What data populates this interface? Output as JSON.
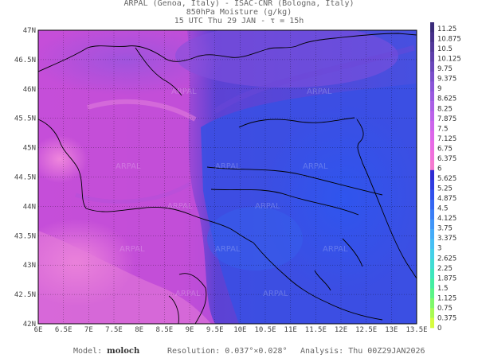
{
  "header": {
    "line1": "ARPAL (Genoa, Italy)  -  ISAC-CNR (Bologna, Italy)",
    "line2": "850hPa Moisture (g/kg)",
    "line3": "15 UTC Thu 29 JAN  -  τ = 15h"
  },
  "map": {
    "lat_ticks": [
      "47N",
      "46.5N",
      "46N",
      "45.5N",
      "45N",
      "44.5N",
      "44N",
      "43.5N",
      "43N",
      "42.5N",
      "42N"
    ],
    "lon_ticks": [
      "6E",
      "6.5E",
      "7E",
      "7.5E",
      "8E",
      "8.5E",
      "9E",
      "9.5E",
      "10E",
      "10.5E",
      "11E",
      "11.5E",
      "12E",
      "12.5E",
      "13E",
      "13.5E"
    ],
    "watermark": "ARPAL"
  },
  "colorbar": {
    "labels": [
      "11.25",
      "10.875",
      "10.5",
      "10.125",
      "9.75",
      "9.375",
      "9",
      "8.625",
      "8.25",
      "7.875",
      "7.5",
      "7.125",
      "6.75",
      "6.375",
      "6",
      "5.625",
      "5.25",
      "4.875",
      "4.5",
      "4.125",
      "3.75",
      "3.375",
      "3",
      "2.625",
      "2.25",
      "1.875",
      "1.5",
      "1.125",
      "0.75",
      "0.375",
      "0"
    ],
    "colors": [
      "#3a2b7a",
      "#46308a",
      "#52389a",
      "#5e3fab",
      "#6a47bb",
      "#7a4fcb",
      "#8a55d8",
      "#9a5ae0",
      "#aa5fe6",
      "#bb62ea",
      "#cc64ec",
      "#dc66ea",
      "#e86ae6",
      "#f070dc",
      "#f57ad0",
      "#2e2bd2",
      "#2f3ce0",
      "#3050ec",
      "#3466f2",
      "#3a7ef6",
      "#3f95f8",
      "#44abf8",
      "#46bff4",
      "#44d0e8",
      "#40dcd4",
      "#3de6bd",
      "#43eea2",
      "#5af486",
      "#7ef86a",
      "#a8fa52",
      "#d6fc40"
    ]
  },
  "footer": {
    "model_label": "Model:",
    "model_value": "moloch",
    "resolution": "Resolution: 0.037°×0.028°",
    "analysis": "Analysis: Thu 00Z29JAN2026"
  }
}
